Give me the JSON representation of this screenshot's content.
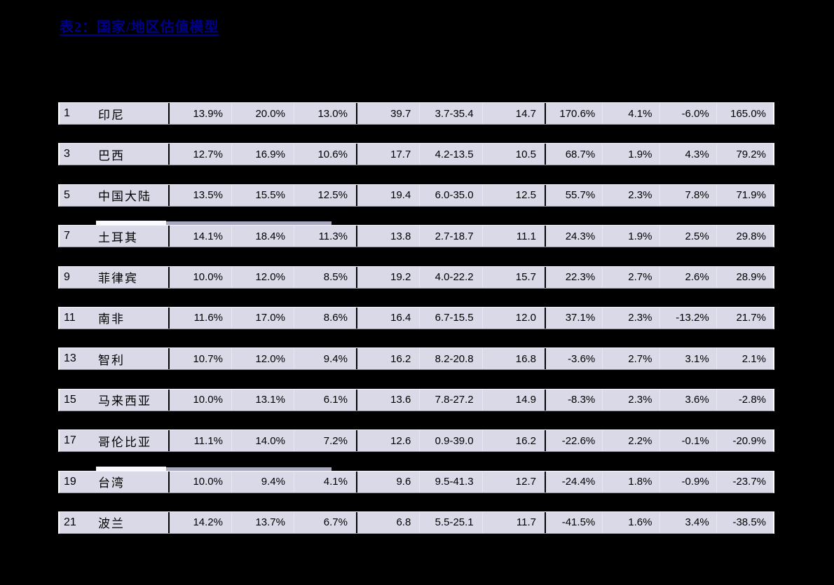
{
  "page": {
    "background": "#000000",
    "row_background": "#D9D9E8",
    "title_color": "#00008B"
  },
  "title": {
    "text": "表2：国家/地区估值模型"
  },
  "table": {
    "rows": [
      {
        "num": "1",
        "name": "印尼",
        "pct_a": [
          "13.9%",
          "20.0%",
          "13.0%"
        ],
        "pe": [
          "39.7",
          "3.7-35.4",
          "14.7"
        ],
        "pct_b": [
          "170.6%",
          "4.1%",
          "-6.0%",
          "165.0%"
        ],
        "mark": false
      },
      {
        "num": "3",
        "name": "巴西",
        "pct_a": [
          "12.7%",
          "16.9%",
          "10.6%"
        ],
        "pe": [
          "17.7",
          "4.2-13.5",
          "10.5"
        ],
        "pct_b": [
          "68.7%",
          "1.9%",
          "4.3%",
          "79.2%"
        ],
        "mark": false
      },
      {
        "num": "5",
        "name": "中国大陆",
        "pct_a": [
          "13.5%",
          "15.5%",
          "12.5%"
        ],
        "pe": [
          "19.4",
          "6.0-35.0",
          "12.5"
        ],
        "pct_b": [
          "55.7%",
          "2.3%",
          "7.8%",
          "71.9%"
        ],
        "mark": false
      },
      {
        "num": "7",
        "name": "土耳其",
        "pct_a": [
          "14.1%",
          "18.4%",
          "11.3%"
        ],
        "pe": [
          "13.8",
          "2.7-18.7",
          "11.1"
        ],
        "pct_b": [
          "24.3%",
          "1.9%",
          "2.5%",
          "29.8%"
        ],
        "mark": true
      },
      {
        "num": "9",
        "name": "菲律宾",
        "pct_a": [
          "10.0%",
          "12.0%",
          "8.5%"
        ],
        "pe": [
          "19.2",
          "4.0-22.2",
          "15.7"
        ],
        "pct_b": [
          "22.3%",
          "2.7%",
          "2.6%",
          "28.9%"
        ],
        "mark": false
      },
      {
        "num": "11",
        "name": "南非",
        "pct_a": [
          "11.6%",
          "17.0%",
          "8.6%"
        ],
        "pe": [
          "16.4",
          "6.7-15.5",
          "12.0"
        ],
        "pct_b": [
          "37.1%",
          "2.3%",
          "-13.2%",
          "21.7%"
        ],
        "mark": false
      },
      {
        "num": "13",
        "name": "智利",
        "pct_a": [
          "10.7%",
          "12.0%",
          "9.4%"
        ],
        "pe": [
          "16.2",
          "8.2-20.8",
          "16.8"
        ],
        "pct_b": [
          "-3.6%",
          "2.7%",
          "3.1%",
          "2.1%"
        ],
        "mark": false
      },
      {
        "num": "15",
        "name": "马来西亚",
        "pct_a": [
          "10.0%",
          "13.1%",
          "6.1%"
        ],
        "pe": [
          "13.6",
          "7.8-27.2",
          "14.9"
        ],
        "pct_b": [
          "-8.3%",
          "2.3%",
          "3.6%",
          "-2.8%"
        ],
        "mark": false
      },
      {
        "num": "17",
        "name": "哥伦比亚",
        "pct_a": [
          "11.1%",
          "14.0%",
          "7.2%"
        ],
        "pe": [
          "12.6",
          "0.9-39.0",
          "16.2"
        ],
        "pct_b": [
          "-22.6%",
          "2.2%",
          "-0.1%",
          "-20.9%"
        ],
        "mark": false
      },
      {
        "num": "19",
        "name": "台湾",
        "pct_a": [
          "10.0%",
          "9.4%",
          "4.1%"
        ],
        "pe": [
          "9.6",
          "9.5-41.3",
          "12.7"
        ],
        "pct_b": [
          "-24.4%",
          "1.8%",
          "-0.9%",
          "-23.7%"
        ],
        "mark": true
      },
      {
        "num": "21",
        "name": "波兰",
        "pct_a": [
          "14.2%",
          "13.7%",
          "6.7%"
        ],
        "pe": [
          "6.8",
          "5.5-25.1",
          "11.7"
        ],
        "pct_b": [
          "-41.5%",
          "1.6%",
          "3.4%",
          "-38.5%"
        ],
        "mark": false
      }
    ]
  }
}
